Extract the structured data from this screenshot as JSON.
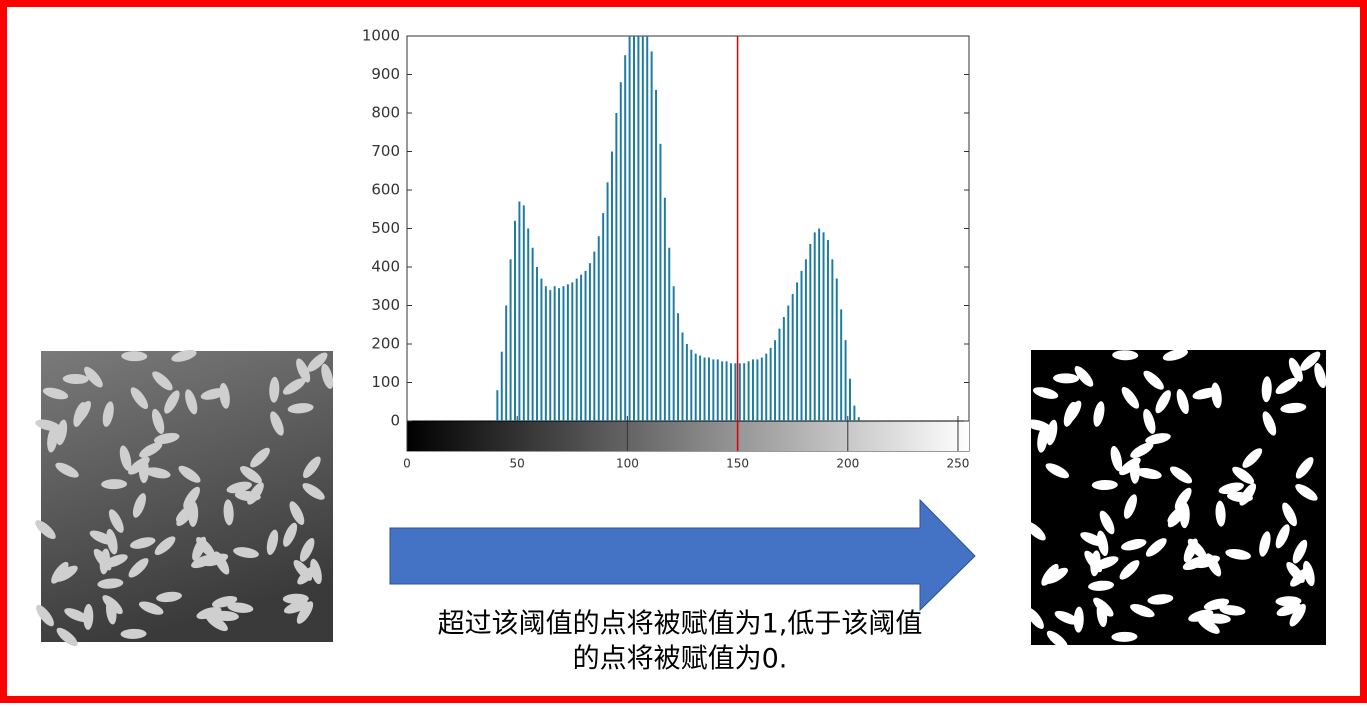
{
  "chart_data": {
    "type": "histogram",
    "color": "#1f7ca0",
    "bins": [
      38,
      40,
      42,
      44,
      46,
      48,
      50,
      52,
      54,
      56,
      58,
      60,
      62,
      64,
      66,
      68,
      70,
      72,
      74,
      76,
      78,
      80,
      82,
      84,
      86,
      88,
      90,
      92,
      94,
      96,
      98,
      100,
      102,
      104,
      106,
      108,
      110,
      112,
      114,
      116,
      118,
      120,
      122,
      124,
      126,
      128,
      130,
      132,
      134,
      136,
      138,
      140,
      142,
      144,
      146,
      148,
      150,
      152,
      154,
      156,
      158,
      160,
      162,
      164,
      166,
      168,
      170,
      172,
      174,
      176,
      178,
      180,
      182,
      184,
      186,
      188,
      190,
      192,
      194,
      196,
      198,
      200,
      202,
      204,
      206,
      208
    ],
    "values": [
      0,
      80,
      180,
      300,
      420,
      520,
      570,
      560,
      500,
      450,
      400,
      370,
      350,
      340,
      350,
      345,
      350,
      355,
      360,
      370,
      380,
      390,
      410,
      440,
      480,
      540,
      620,
      700,
      800,
      880,
      950,
      1000,
      1050,
      1050,
      1050,
      1050,
      960,
      860,
      720,
      580,
      450,
      350,
      280,
      230,
      200,
      185,
      175,
      170,
      165,
      165,
      160,
      160,
      155,
      155,
      150,
      150,
      150,
      150,
      155,
      160,
      160,
      165,
      175,
      190,
      210,
      240,
      270,
      300,
      330,
      360,
      390,
      420,
      460,
      490,
      500,
      490,
      470,
      420,
      370,
      290,
      210,
      110,
      40,
      10,
      0
    ],
    "xlim": [
      0,
      255
    ],
    "ylim": [
      0,
      1000
    ],
    "xticks": [
      0,
      50,
      100,
      150,
      200,
      250
    ],
    "yticks": [
      0,
      100,
      200,
      300,
      400,
      500,
      600,
      700,
      800,
      900,
      1000
    ],
    "threshold": 150,
    "threshold_color": "#e00000"
  },
  "caption_lines": [
    "超过该阈值的点将被赋值为1,低于该阈值",
    "的点将被赋值为0."
  ]
}
